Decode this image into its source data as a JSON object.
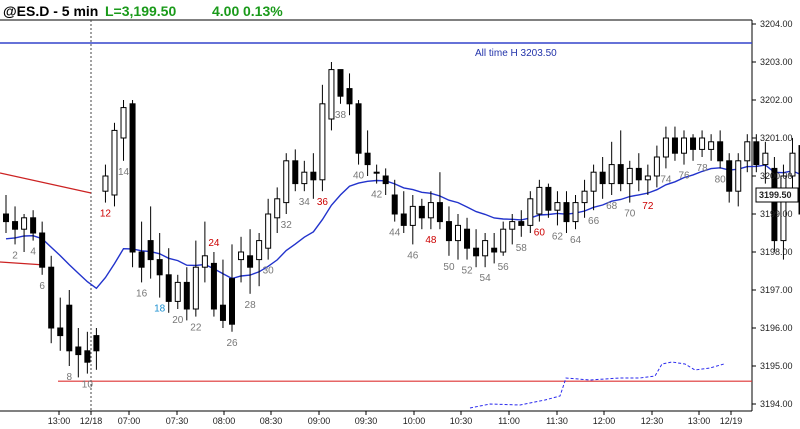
{
  "header": {
    "symbol_interval": "@ES.D - 5 min",
    "last": "L=3,199.50",
    "change": "4.00",
    "change_pct": "0.13%"
  },
  "colors": {
    "background": "#ffffff",
    "up_candle": "#ffffff",
    "down_candle": "#000000",
    "ema": "#2233cc",
    "ath_line": "#3344cc",
    "trend_line": "#cc2222",
    "support_line": "#dd3333",
    "prior_day_line": "#2a2aee",
    "highlight_label": "#cc0000",
    "ema_label": "#1a8fd0",
    "bar_label": "#777777"
  },
  "chart_data": {
    "type": "candlestick",
    "ylim": [
      3193.5,
      3204.4
    ],
    "y_ticks": [
      "3194.00",
      "3195.00",
      "3196.00",
      "3197.00",
      "3198.00",
      "3199.00",
      "3200.00",
      "3201.00",
      "3202.00",
      "3203.00",
      "3204.00"
    ],
    "x_tick_labels": [
      "13:00",
      "12/18",
      "07:00",
      "07:30",
      "08:00",
      "08:30",
      "09:00",
      "09:30",
      "10:00",
      "10:30",
      "11:00",
      "11:30",
      "12:00",
      "12:30",
      "13:00",
      "12/19"
    ],
    "last_price_label": "3199.50",
    "annotations": {
      "ath_label": "All time H 3203.50",
      "ath_value": 3203.5,
      "support_value": 3194.6
    },
    "bars": [
      {
        "o": 3199.0,
        "h": 3199.5,
        "l": 3198.5,
        "c": 3198.8
      },
      {
        "o": 3198.8,
        "h": 3199.2,
        "l": 3198.2,
        "c": 3198.6
      },
      {
        "o": 3198.6,
        "h": 3199.0,
        "l": 3198.0,
        "c": 3198.9
      },
      {
        "o": 3198.9,
        "h": 3199.1,
        "l": 3198.3,
        "c": 3198.5
      },
      {
        "o": 3198.5,
        "h": 3198.8,
        "l": 3197.4,
        "c": 3197.6
      },
      {
        "o": 3197.6,
        "h": 3197.9,
        "l": 3195.6,
        "c": 3196.0
      },
      {
        "o": 3196.0,
        "h": 3196.8,
        "l": 3195.4,
        "c": 3195.8
      },
      {
        "o": 3196.6,
        "h": 3197.0,
        "l": 3195.0,
        "c": 3195.4
      },
      {
        "o": 3195.5,
        "h": 3196.0,
        "l": 3194.7,
        "c": 3195.3
      },
      {
        "o": 3195.4,
        "h": 3195.9,
        "l": 3194.8,
        "c": 3195.1
      },
      {
        "o": 3195.8,
        "h": 3196.0,
        "l": 3194.9,
        "c": 3195.4
      },
      {
        "o": 3199.6,
        "h": 3200.3,
        "l": 3199.3,
        "c": 3200.0
      },
      {
        "o": 3199.5,
        "h": 3201.4,
        "l": 3199.2,
        "c": 3201.2
      },
      {
        "o": 3201.0,
        "h": 3202.0,
        "l": 3200.4,
        "c": 3201.8
      },
      {
        "o": 3201.9,
        "h": 3202.0,
        "l": 3197.6,
        "c": 3198.0
      },
      {
        "o": 3198.0,
        "h": 3198.8,
        "l": 3197.2,
        "c": 3197.6
      },
      {
        "o": 3198.3,
        "h": 3199.2,
        "l": 3197.3,
        "c": 3197.8
      },
      {
        "o": 3197.8,
        "h": 3198.5,
        "l": 3196.8,
        "c": 3197.4
      },
      {
        "o": 3197.4,
        "h": 3198.1,
        "l": 3196.4,
        "c": 3196.7
      },
      {
        "o": 3196.7,
        "h": 3197.4,
        "l": 3196.5,
        "c": 3197.2
      },
      {
        "o": 3197.2,
        "h": 3197.6,
        "l": 3196.2,
        "c": 3196.5
      },
      {
        "o": 3196.5,
        "h": 3198.3,
        "l": 3196.3,
        "c": 3197.6
      },
      {
        "o": 3197.6,
        "h": 3198.8,
        "l": 3197.2,
        "c": 3197.9
      },
      {
        "o": 3197.7,
        "h": 3198.0,
        "l": 3196.3,
        "c": 3196.5
      },
      {
        "o": 3196.6,
        "h": 3197.8,
        "l": 3196.0,
        "c": 3196.2
      },
      {
        "o": 3197.3,
        "h": 3198.2,
        "l": 3195.9,
        "c": 3196.1
      },
      {
        "o": 3197.8,
        "h": 3198.4,
        "l": 3197.2,
        "c": 3198.0
      },
      {
        "o": 3197.9,
        "h": 3198.6,
        "l": 3196.9,
        "c": 3197.6
      },
      {
        "o": 3197.8,
        "h": 3198.5,
        "l": 3197.1,
        "c": 3198.3
      },
      {
        "o": 3198.1,
        "h": 3199.4,
        "l": 3197.8,
        "c": 3199.0
      },
      {
        "o": 3198.9,
        "h": 3199.7,
        "l": 3198.5,
        "c": 3199.4
      },
      {
        "o": 3199.3,
        "h": 3200.6,
        "l": 3199.0,
        "c": 3200.4
      },
      {
        "o": 3200.4,
        "h": 3200.7,
        "l": 3199.6,
        "c": 3199.8
      },
      {
        "o": 3199.8,
        "h": 3200.4,
        "l": 3199.6,
        "c": 3200.1
      },
      {
        "o": 3200.1,
        "h": 3200.6,
        "l": 3199.4,
        "c": 3199.9
      },
      {
        "o": 3199.9,
        "h": 3202.4,
        "l": 3199.6,
        "c": 3201.9
      },
      {
        "o": 3201.5,
        "h": 3203.0,
        "l": 3201.2,
        "c": 3202.8
      },
      {
        "o": 3202.8,
        "h": 3202.8,
        "l": 3201.9,
        "c": 3202.1
      },
      {
        "o": 3202.3,
        "h": 3202.7,
        "l": 3201.6,
        "c": 3201.9
      },
      {
        "o": 3201.9,
        "h": 3202.0,
        "l": 3200.3,
        "c": 3200.6
      },
      {
        "o": 3200.6,
        "h": 3201.2,
        "l": 3200.0,
        "c": 3200.3
      },
      {
        "o": 3200.1,
        "h": 3200.3,
        "l": 3199.8,
        "c": 3200.1
      },
      {
        "o": 3200.0,
        "h": 3200.2,
        "l": 3199.5,
        "c": 3199.8
      },
      {
        "o": 3199.5,
        "h": 3199.9,
        "l": 3198.8,
        "c": 3199.0
      },
      {
        "o": 3199.0,
        "h": 3199.6,
        "l": 3198.5,
        "c": 3198.7
      },
      {
        "o": 3198.7,
        "h": 3199.5,
        "l": 3198.2,
        "c": 3199.2
      },
      {
        "o": 3199.2,
        "h": 3199.4,
        "l": 3198.6,
        "c": 3198.9
      },
      {
        "o": 3198.9,
        "h": 3199.6,
        "l": 3198.6,
        "c": 3199.3
      },
      {
        "o": 3199.3,
        "h": 3200.1,
        "l": 3198.6,
        "c": 3198.8
      },
      {
        "o": 3198.8,
        "h": 3199.2,
        "l": 3197.9,
        "c": 3198.3
      },
      {
        "o": 3198.3,
        "h": 3199.0,
        "l": 3197.8,
        "c": 3198.7
      },
      {
        "o": 3198.6,
        "h": 3198.9,
        "l": 3197.8,
        "c": 3198.1
      },
      {
        "o": 3198.1,
        "h": 3198.6,
        "l": 3197.6,
        "c": 3197.9
      },
      {
        "o": 3197.9,
        "h": 3198.5,
        "l": 3197.6,
        "c": 3198.3
      },
      {
        "o": 3198.1,
        "h": 3198.5,
        "l": 3197.7,
        "c": 3198.0
      },
      {
        "o": 3198.0,
        "h": 3198.8,
        "l": 3197.9,
        "c": 3198.6
      },
      {
        "o": 3198.6,
        "h": 3199.0,
        "l": 3198.2,
        "c": 3198.8
      },
      {
        "o": 3198.8,
        "h": 3199.1,
        "l": 3198.4,
        "c": 3198.7
      },
      {
        "o": 3198.7,
        "h": 3199.6,
        "l": 3198.5,
        "c": 3199.4
      },
      {
        "o": 3199.0,
        "h": 3199.9,
        "l": 3198.8,
        "c": 3199.7
      },
      {
        "o": 3199.7,
        "h": 3199.8,
        "l": 3198.9,
        "c": 3199.1
      },
      {
        "o": 3199.1,
        "h": 3199.6,
        "l": 3198.7,
        "c": 3199.3
      },
      {
        "o": 3199.3,
        "h": 3199.6,
        "l": 3198.5,
        "c": 3198.8
      },
      {
        "o": 3198.8,
        "h": 3199.5,
        "l": 3198.6,
        "c": 3199.3
      },
      {
        "o": 3199.3,
        "h": 3199.9,
        "l": 3198.9,
        "c": 3199.6
      },
      {
        "o": 3199.6,
        "h": 3200.3,
        "l": 3199.1,
        "c": 3200.1
      },
      {
        "o": 3200.1,
        "h": 3200.5,
        "l": 3199.4,
        "c": 3199.8
      },
      {
        "o": 3199.8,
        "h": 3200.9,
        "l": 3199.5,
        "c": 3200.3
      },
      {
        "o": 3200.3,
        "h": 3201.2,
        "l": 3199.6,
        "c": 3199.8
      },
      {
        "o": 3199.8,
        "h": 3200.4,
        "l": 3199.3,
        "c": 3200.2
      },
      {
        "o": 3200.2,
        "h": 3200.6,
        "l": 3199.6,
        "c": 3199.9
      },
      {
        "o": 3199.9,
        "h": 3200.3,
        "l": 3199.5,
        "c": 3200.0
      },
      {
        "o": 3200.0,
        "h": 3200.8,
        "l": 3199.7,
        "c": 3200.5
      },
      {
        "o": 3200.5,
        "h": 3201.3,
        "l": 3200.2,
        "c": 3201.0
      },
      {
        "o": 3201.0,
        "h": 3201.3,
        "l": 3200.4,
        "c": 3200.6
      },
      {
        "o": 3200.6,
        "h": 3201.2,
        "l": 3200.3,
        "c": 3201.0
      },
      {
        "o": 3201.0,
        "h": 3201.1,
        "l": 3200.4,
        "c": 3200.7
      },
      {
        "o": 3200.7,
        "h": 3201.2,
        "l": 3200.5,
        "c": 3201.0
      },
      {
        "o": 3200.7,
        "h": 3201.1,
        "l": 3200.4,
        "c": 3200.9
      },
      {
        "o": 3200.9,
        "h": 3201.2,
        "l": 3200.2,
        "c": 3200.4
      },
      {
        "o": 3200.4,
        "h": 3200.6,
        "l": 3199.3,
        "c": 3199.6
      },
      {
        "o": 3199.6,
        "h": 3200.6,
        "l": 3199.2,
        "c": 3200.4
      },
      {
        "o": 3200.4,
        "h": 3201.1,
        "l": 3200.1,
        "c": 3200.9
      },
      {
        "o": 3200.9,
        "h": 3201.1,
        "l": 3200.1,
        "c": 3200.3
      },
      {
        "o": 3200.3,
        "h": 3200.9,
        "l": 3199.8,
        "c": 3200.6
      },
      {
        "o": 3200.2,
        "h": 3200.5,
        "l": 3198.0,
        "c": 3198.3
      },
      {
        "o": 3198.3,
        "h": 3200.3,
        "l": 3197.8,
        "c": 3200.0
      },
      {
        "o": 3200.0,
        "h": 3201.0,
        "l": 3199.6,
        "c": 3200.6
      },
      {
        "o": 3200.8,
        "h": 3200.9,
        "l": 3198.7,
        "c": 3199.0
      },
      {
        "o": 3199.9,
        "h": 3200.2,
        "l": 3196.6,
        "c": 3196.9
      },
      {
        "o": 3196.9,
        "h": 3198.3,
        "l": 3196.1,
        "c": 3198.0
      },
      {
        "o": 3198.0,
        "h": 3199.1,
        "l": 3197.8,
        "c": 3198.9
      },
      {
        "o": 3198.9,
        "h": 3199.5,
        "l": 3198.0,
        "c": 3199.5
      }
    ],
    "bar_labels": [
      {
        "bar": 1,
        "text": "2",
        "color": "grey",
        "pos": "below"
      },
      {
        "bar": 3,
        "text": "4",
        "color": "grey",
        "pos": "below"
      },
      {
        "bar": 4,
        "text": "6",
        "color": "grey",
        "pos": "below"
      },
      {
        "bar": 7,
        "text": "8",
        "color": "grey",
        "pos": "below"
      },
      {
        "bar": 9,
        "text": "10",
        "color": "grey",
        "pos": "below"
      },
      {
        "bar": 11,
        "text": "12",
        "color": "red",
        "pos": "below"
      },
      {
        "bar": 13,
        "text": "14",
        "color": "grey",
        "pos": "below"
      },
      {
        "bar": 15,
        "text": "16",
        "color": "grey",
        "pos": "below"
      },
      {
        "bar": 17,
        "text": "18",
        "color": "blue",
        "pos": "below"
      },
      {
        "bar": 19,
        "text": "20",
        "color": "grey",
        "pos": "below"
      },
      {
        "bar": 21,
        "text": "22",
        "color": "grey",
        "pos": "below"
      },
      {
        "bar": 23,
        "text": "24",
        "color": "red",
        "pos": "above"
      },
      {
        "bar": 25,
        "text": "26",
        "color": "grey",
        "pos": "below"
      },
      {
        "bar": 27,
        "text": "28",
        "color": "grey",
        "pos": "below"
      },
      {
        "bar": 29,
        "text": "30",
        "color": "grey",
        "pos": "below"
      },
      {
        "bar": 31,
        "text": "32",
        "color": "grey",
        "pos": "below"
      },
      {
        "bar": 33,
        "text": "34",
        "color": "grey",
        "pos": "below"
      },
      {
        "bar": 35,
        "text": "36",
        "color": "red",
        "pos": "below"
      },
      {
        "bar": 37,
        "text": "38",
        "color": "grey",
        "pos": "below"
      },
      {
        "bar": 39,
        "text": "40",
        "color": "grey",
        "pos": "below"
      },
      {
        "bar": 41,
        "text": "42",
        "color": "grey",
        "pos": "below"
      },
      {
        "bar": 43,
        "text": "44",
        "color": "grey",
        "pos": "below"
      },
      {
        "bar": 45,
        "text": "46",
        "color": "grey",
        "pos": "below"
      },
      {
        "bar": 47,
        "text": "48",
        "color": "red",
        "pos": "below"
      },
      {
        "bar": 49,
        "text": "50",
        "color": "grey",
        "pos": "below"
      },
      {
        "bar": 51,
        "text": "52",
        "color": "grey",
        "pos": "below"
      },
      {
        "bar": 53,
        "text": "54",
        "color": "grey",
        "pos": "below"
      },
      {
        "bar": 55,
        "text": "56",
        "color": "grey",
        "pos": "below"
      },
      {
        "bar": 57,
        "text": "58",
        "color": "grey",
        "pos": "below"
      },
      {
        "bar": 59,
        "text": "60",
        "color": "red",
        "pos": "below"
      },
      {
        "bar": 61,
        "text": "62",
        "color": "grey",
        "pos": "below"
      },
      {
        "bar": 63,
        "text": "64",
        "color": "grey",
        "pos": "below"
      },
      {
        "bar": 65,
        "text": "66",
        "color": "grey",
        "pos": "below"
      },
      {
        "bar": 67,
        "text": "68",
        "color": "grey",
        "pos": "below"
      },
      {
        "bar": 69,
        "text": "70",
        "color": "grey",
        "pos": "below"
      },
      {
        "bar": 71,
        "text": "72",
        "color": "red",
        "pos": "below"
      },
      {
        "bar": 73,
        "text": "74",
        "color": "grey",
        "pos": "below"
      },
      {
        "bar": 75,
        "text": "76",
        "color": "grey",
        "pos": "below"
      },
      {
        "bar": 77,
        "text": "78",
        "color": "grey",
        "pos": "below"
      },
      {
        "bar": 79,
        "text": "80",
        "color": "grey",
        "pos": "below"
      }
    ]
  }
}
